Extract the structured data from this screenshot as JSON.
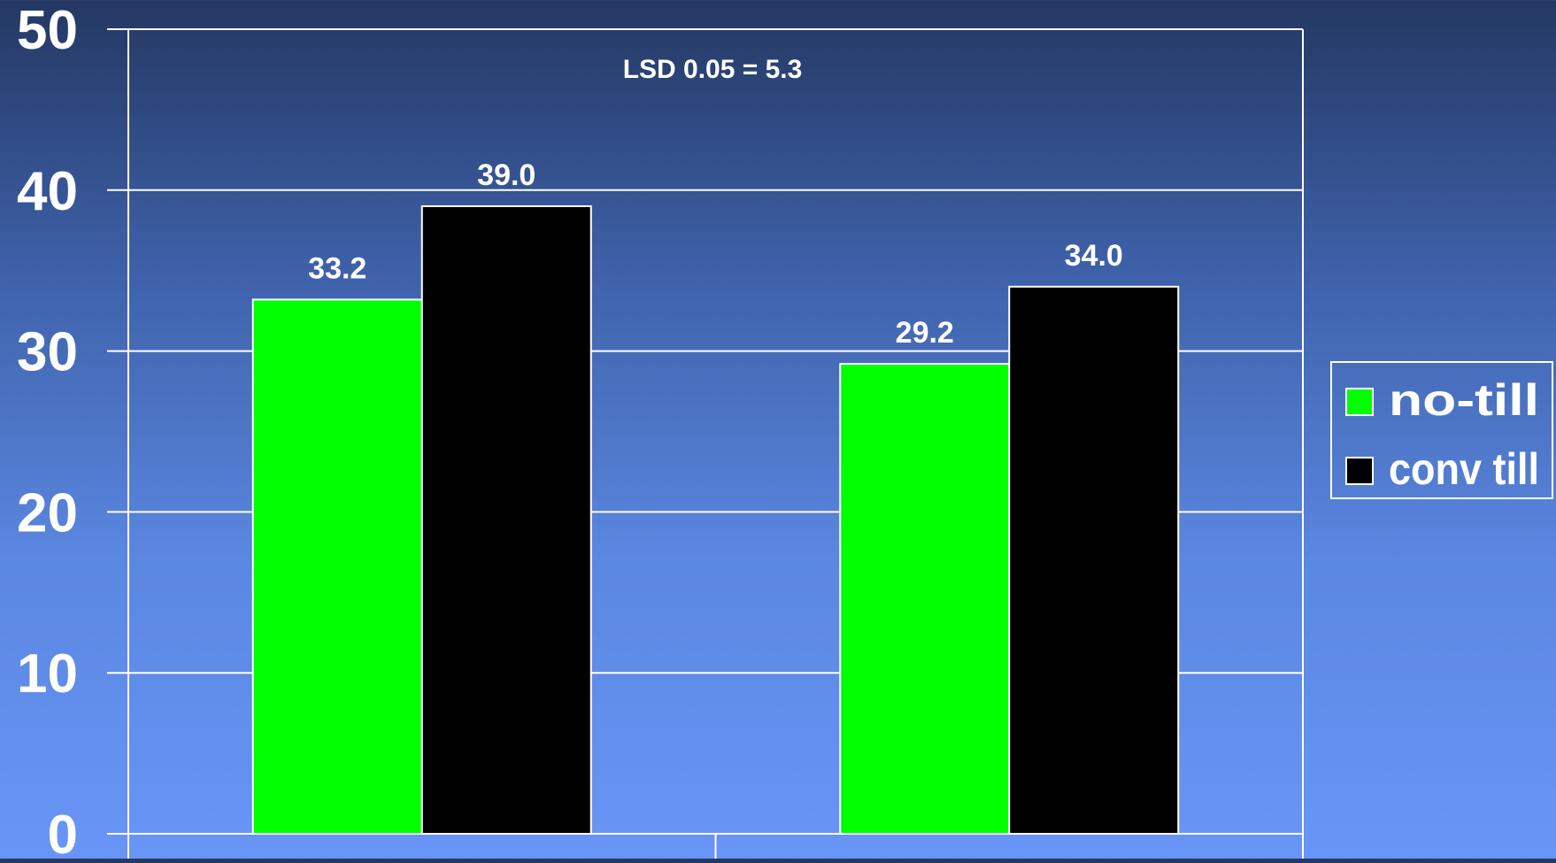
{
  "chart_data": {
    "type": "bar",
    "title": "",
    "annotation": "LSD 0.05 = 5.3",
    "xlabel": "",
    "ylabel": "",
    "categories": [
      "",
      ""
    ],
    "ylim": [
      0,
      50
    ],
    "yticks": [
      "0",
      "10",
      "20",
      "30",
      "40",
      "50"
    ],
    "grid": true,
    "legend_position": "right",
    "series": [
      {
        "name": "no-till",
        "color": "#00ff00",
        "values": [
          33.2,
          29.2
        ],
        "labels": [
          "33.2",
          "29.2"
        ]
      },
      {
        "name": "conv till",
        "color": "#000000",
        "values": [
          39.0,
          34.0
        ],
        "labels": [
          "39.0",
          "34.0"
        ]
      }
    ]
  }
}
